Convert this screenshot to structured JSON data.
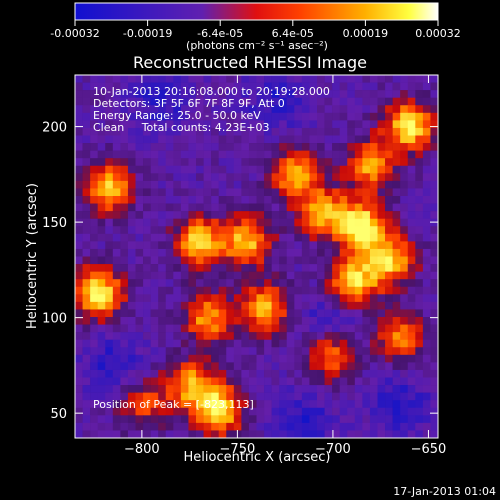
{
  "colorbar": {
    "ticks": [
      "-0.00032",
      "-0.00019",
      "-6.4e-05",
      "6.4e-05",
      "0.00019",
      "0.00032"
    ],
    "unit_label": "(photons cm⁻² s⁻¹ asec⁻²)",
    "colors": [
      "#1010d0",
      "#6020b0",
      "#ff2000",
      "#ff8c00",
      "#ffff20",
      "#ffffff"
    ]
  },
  "chart_data": {
    "type": "heatmap",
    "title": "Reconstructed RHESSI Image",
    "xlabel": "Heliocentric X (arcsec)",
    "ylabel": "Heliocentric Y (arcsec)",
    "xlim": [
      -835,
      -645
    ],
    "ylim": [
      37,
      227
    ],
    "xticks": [
      -800,
      -750,
      -700,
      -650
    ],
    "yticks": [
      50,
      100,
      150,
      200
    ],
    "value_range": [
      -0.00032,
      0.00032
    ],
    "annotations": [
      "10-Jan-2013 20:16:08.000 to 20:19:28.000",
      "Detectors: 3F 5F 6F 7F 8F 9F, Att 0",
      "Energy Range: 25.0 - 50.0 keV",
      "Clean     Total counts: 4.23E+03"
    ],
    "peak_label": "Position of Peak = [-823,113]",
    "peak": [
      -823,
      113
    ],
    "bright_regions": [
      {
        "x": -823,
        "y": 113,
        "level": 0.95
      },
      {
        "x": -818,
        "y": 168,
        "level": 0.8
      },
      {
        "x": -770,
        "y": 140,
        "level": 0.8
      },
      {
        "x": -745,
        "y": 140,
        "level": 0.75
      },
      {
        "x": -765,
        "y": 100,
        "level": 0.7
      },
      {
        "x": -760,
        "y": 52,
        "level": 0.9
      },
      {
        "x": -775,
        "y": 65,
        "level": 0.7
      },
      {
        "x": -735,
        "y": 105,
        "level": 0.75
      },
      {
        "x": -720,
        "y": 175,
        "level": 0.75
      },
      {
        "x": -705,
        "y": 155,
        "level": 0.7
      },
      {
        "x": -685,
        "y": 148,
        "level": 0.95
      },
      {
        "x": -690,
        "y": 118,
        "level": 0.9
      },
      {
        "x": -670,
        "y": 130,
        "level": 0.8
      },
      {
        "x": -660,
        "y": 200,
        "level": 0.9
      },
      {
        "x": -680,
        "y": 180,
        "level": 0.7
      },
      {
        "x": -700,
        "y": 80,
        "level": 0.65
      },
      {
        "x": -665,
        "y": 90,
        "level": 0.6
      },
      {
        "x": -800,
        "y": 55,
        "level": 0.5
      }
    ],
    "dark_regions": [
      {
        "x": -730,
        "y": 215
      },
      {
        "x": -790,
        "y": 215
      },
      {
        "x": -700,
        "y": 100
      },
      {
        "x": -715,
        "y": 45
      },
      {
        "x": -815,
        "y": 75
      },
      {
        "x": -665,
        "y": 55
      }
    ]
  },
  "footer": {
    "timestamp": "17-Jan-2013 01:04"
  }
}
